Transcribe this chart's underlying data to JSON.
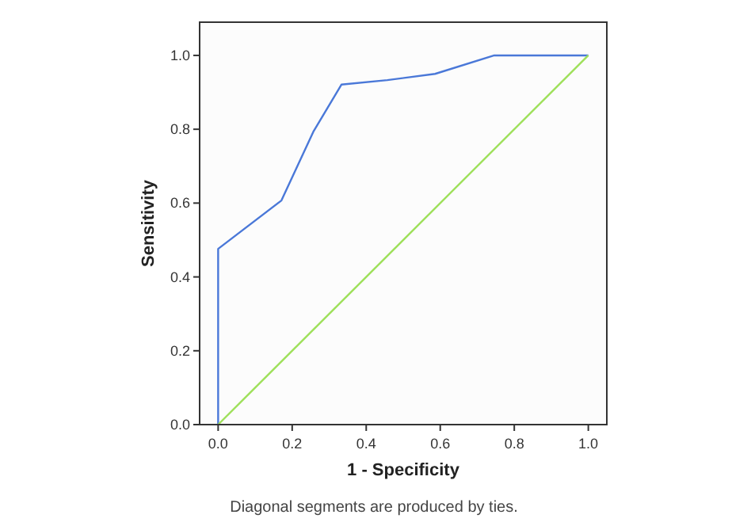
{
  "chart_data": {
    "type": "line",
    "xlabel": "1 - Specificity",
    "ylabel": "Sensitivity",
    "annotations": [
      "Diagonal segments are produced by ties."
    ],
    "xlim": [
      -0.05,
      1.05
    ],
    "ylim": [
      0,
      1.09
    ],
    "xticks": [
      {
        "value": 0,
        "label": "0.0"
      },
      {
        "value": 0.2,
        "label": "0.2"
      },
      {
        "value": 0.4,
        "label": "0.4"
      },
      {
        "value": 0.6,
        "label": "0.6"
      },
      {
        "value": 0.8,
        "label": "0.8"
      },
      {
        "value": 1,
        "label": "1.0"
      }
    ],
    "yticks": [
      {
        "value": 0,
        "label": "0.0"
      },
      {
        "value": 0.2,
        "label": "0.2"
      },
      {
        "value": 0.4,
        "label": "0.4"
      },
      {
        "value": 0.6,
        "label": "0.6"
      },
      {
        "value": 0.8,
        "label": "0.8"
      },
      {
        "value": 1,
        "label": "1.0"
      }
    ],
    "grid": false,
    "marker": "none",
    "line_style": "solid",
    "series": [
      {
        "color": "#4a78d8",
        "x": [
          0,
          0,
          0.171,
          0.257,
          0.333,
          0.457,
          0.586,
          0.746,
          1
        ],
        "values": [
          0,
          0.476,
          0.607,
          0.793,
          0.921,
          0.933,
          0.95,
          1,
          1
        ]
      },
      {
        "color": "#9ee05a",
        "x": [
          0,
          1
        ],
        "values": [
          0,
          1
        ]
      }
    ]
  }
}
